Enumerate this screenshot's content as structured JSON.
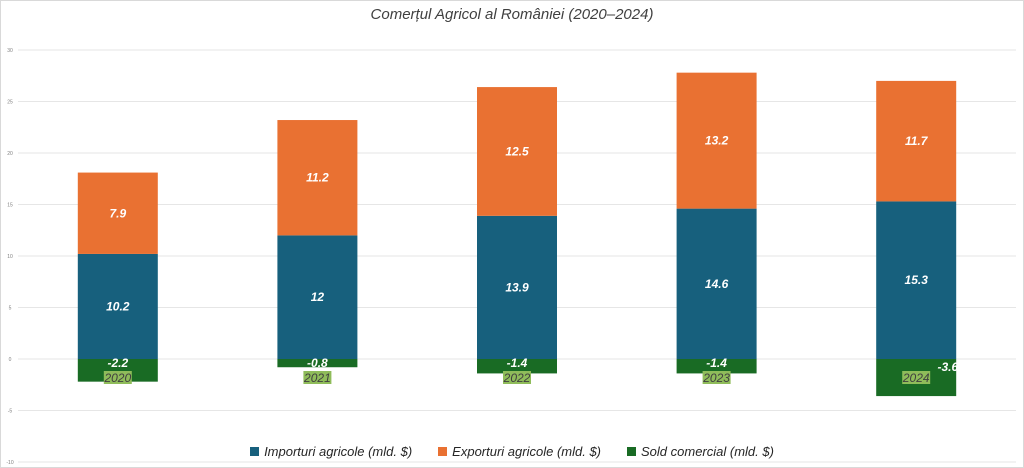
{
  "chart_data": {
    "type": "bar",
    "stacked": true,
    "title": "Comerțul Agricol al României (2020–2024)",
    "categories": [
      "2020",
      "2021",
      "2022",
      "2023",
      "2024"
    ],
    "series": [
      {
        "name": "Importuri agricole (mld. $)",
        "color": "#17607d",
        "values": [
          10.2,
          12,
          13.9,
          14.6,
          15.3
        ]
      },
      {
        "name": "Exporturi agricole (mld. $)",
        "color": "#e97132",
        "values": [
          7.9,
          11.2,
          12.5,
          13.2,
          11.7
        ]
      },
      {
        "name": "Sold comercial (mld. $)",
        "color": "#196b24",
        "values": [
          -2.2,
          -0.8,
          -1.4,
          -1.4,
          -3.6
        ]
      }
    ],
    "y_ticks": [
      "-10",
      "-5",
      "0",
      "5",
      "10",
      "15",
      "20",
      "25",
      "30"
    ],
    "ylim": [
      -10,
      30
    ],
    "grid": true,
    "legend_position": "bottom",
    "category_label_bg": "#8fbc5a"
  }
}
